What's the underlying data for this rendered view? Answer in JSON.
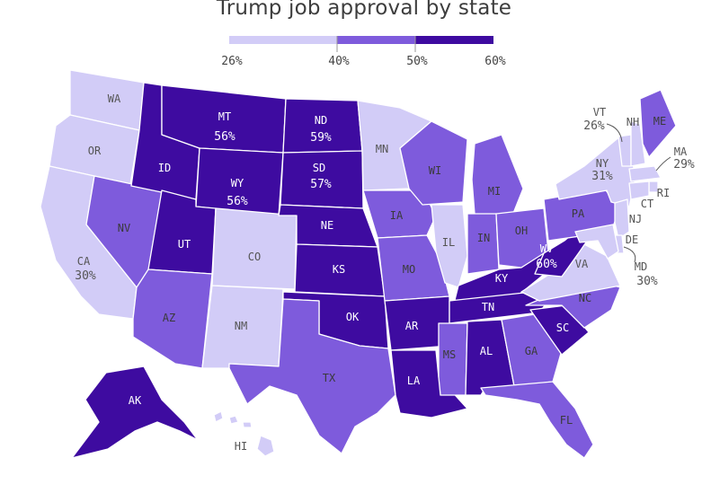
{
  "title": "Trump job approval by state",
  "legend": {
    "ticks": [
      "26%",
      "40%",
      "50%",
      "60%"
    ],
    "bins": [
      {
        "from": 26,
        "to": 40,
        "color": "#d2ccf7"
      },
      {
        "from": 40,
        "to": 50,
        "color": "#7e5bdc"
      },
      {
        "from": 50,
        "to": 60,
        "color": "#3e0ba0"
      }
    ]
  },
  "colors": {
    "light": "#d2ccf7",
    "mid": "#7e5bdc",
    "dark": "#3e0ba0",
    "dark_text": "#ffffff",
    "light_text": "#555555",
    "mid_text": "#3a3a3a"
  },
  "states": {
    "WA": {
      "label": "WA",
      "bin": "light"
    },
    "OR": {
      "label": "OR",
      "bin": "light"
    },
    "CA": {
      "label": "CA",
      "value": "30%",
      "bin": "light"
    },
    "NV": {
      "label": "NV",
      "bin": "mid"
    },
    "ID": {
      "label": "ID",
      "bin": "dark"
    },
    "MT": {
      "label": "MT",
      "value": "56%",
      "bin": "dark"
    },
    "WY": {
      "label": "WY",
      "value": "56%",
      "bin": "dark"
    },
    "UT": {
      "label": "UT",
      "bin": "dark"
    },
    "AZ": {
      "label": "AZ",
      "bin": "mid"
    },
    "CO": {
      "label": "CO",
      "bin": "light"
    },
    "NM": {
      "label": "NM",
      "bin": "light"
    },
    "ND": {
      "label": "ND",
      "value": "59%",
      "bin": "dark"
    },
    "SD": {
      "label": "SD",
      "value": "57%",
      "bin": "dark"
    },
    "NE": {
      "label": "NE",
      "bin": "dark"
    },
    "KS": {
      "label": "KS",
      "bin": "dark"
    },
    "OK": {
      "label": "OK",
      "bin": "dark"
    },
    "TX": {
      "label": "TX",
      "bin": "mid"
    },
    "MN": {
      "label": "MN",
      "bin": "light"
    },
    "IA": {
      "label": "IA",
      "bin": "mid"
    },
    "MO": {
      "label": "MO",
      "bin": "mid"
    },
    "AR": {
      "label": "AR",
      "bin": "dark"
    },
    "LA": {
      "label": "LA",
      "bin": "dark"
    },
    "WI": {
      "label": "WI",
      "bin": "mid"
    },
    "IL": {
      "label": "IL",
      "bin": "light"
    },
    "MI": {
      "label": "MI",
      "bin": "mid"
    },
    "IN": {
      "label": "IN",
      "bin": "mid"
    },
    "OH": {
      "label": "OH",
      "bin": "mid"
    },
    "KY": {
      "label": "KY",
      "bin": "dark"
    },
    "TN": {
      "label": "TN",
      "bin": "dark"
    },
    "MS": {
      "label": "MS",
      "bin": "mid"
    },
    "AL": {
      "label": "AL",
      "bin": "dark"
    },
    "GA": {
      "label": "GA",
      "bin": "mid"
    },
    "FL": {
      "label": "FL",
      "bin": "mid"
    },
    "SC": {
      "label": "SC",
      "bin": "dark"
    },
    "NC": {
      "label": "NC",
      "bin": "mid"
    },
    "VA": {
      "label": "VA",
      "bin": "light"
    },
    "WV": {
      "label": "WV",
      "value": "60%",
      "bin": "dark"
    },
    "PA": {
      "label": "PA",
      "bin": "mid"
    },
    "NY": {
      "label": "NY",
      "value": "31%",
      "bin": "light"
    },
    "VT": {
      "label": "VT",
      "value": "26%",
      "bin": "light"
    },
    "NH": {
      "label": "NH",
      "bin": "light"
    },
    "ME": {
      "label": "ME",
      "bin": "mid"
    },
    "MA": {
      "label": "MA",
      "value": "29%",
      "bin": "light"
    },
    "RI": {
      "label": "RI",
      "bin": "light"
    },
    "CT": {
      "label": "CT",
      "bin": "light"
    },
    "NJ": {
      "label": "NJ",
      "bin": "light"
    },
    "DE": {
      "label": "DE",
      "bin": "light"
    },
    "MD": {
      "label": "MD",
      "value": "30%",
      "bin": "light"
    },
    "AK": {
      "label": "AK",
      "bin": "dark"
    },
    "HI": {
      "label": "HI",
      "bin": "light"
    }
  }
}
